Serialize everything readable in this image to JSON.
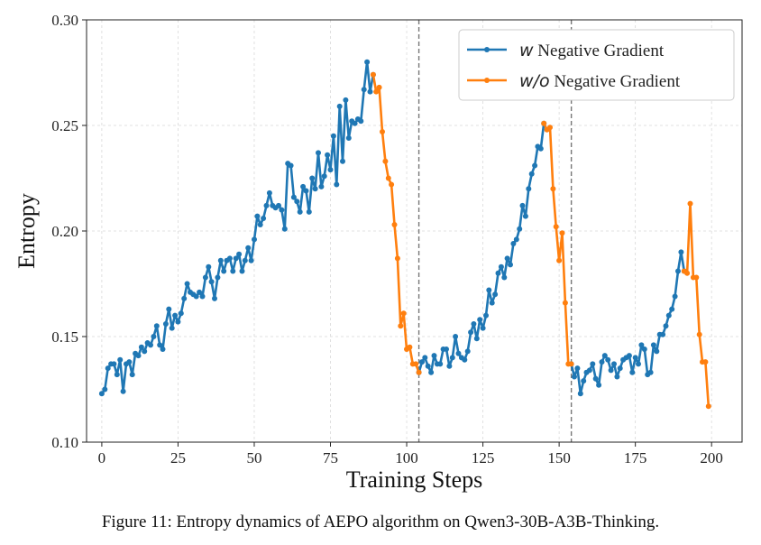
{
  "chart_data": {
    "type": "line",
    "xlabel": "Training Steps",
    "ylabel": "Entropy",
    "xlim": [
      -5,
      210
    ],
    "ylim": [
      0.1,
      0.3
    ],
    "xticks": [
      0,
      25,
      50,
      75,
      100,
      125,
      150,
      175,
      200
    ],
    "xtick_labels": [
      "0",
      "25",
      "50",
      "75",
      "100",
      "125",
      "150",
      "175",
      "200"
    ],
    "yticks": [
      0.1,
      0.15,
      0.2,
      0.25,
      0.3
    ],
    "ytick_labels": [
      "0.10",
      "0.15",
      "0.20",
      "0.25",
      "0.30"
    ],
    "grid": true,
    "legend_position": "top-right",
    "vlines": [
      104,
      154
    ],
    "series": [
      {
        "name_italic": "w",
        "name_rest": " Negative Gradient",
        "color": "#1f77b4",
        "segments": [
          [
            [
              0,
              0.123
            ],
            [
              1,
              0.125
            ],
            [
              2,
              0.135
            ],
            [
              3,
              0.137
            ],
            [
              4,
              0.137
            ],
            [
              5,
              0.132
            ],
            [
              6,
              0.139
            ],
            [
              7,
              0.124
            ],
            [
              8,
              0.137
            ],
            [
              9,
              0.138
            ],
            [
              10,
              0.132
            ],
            [
              11,
              0.142
            ],
            [
              12,
              0.141
            ],
            [
              13,
              0.145
            ],
            [
              14,
              0.143
            ],
            [
              15,
              0.147
            ],
            [
              16,
              0.146
            ],
            [
              17,
              0.15
            ],
            [
              18,
              0.155
            ],
            [
              19,
              0.146
            ],
            [
              20,
              0.144
            ],
            [
              21,
              0.156
            ],
            [
              22,
              0.163
            ],
            [
              23,
              0.154
            ],
            [
              24,
              0.16
            ],
            [
              25,
              0.157
            ],
            [
              26,
              0.161
            ],
            [
              27,
              0.168
            ],
            [
              28,
              0.175
            ],
            [
              29,
              0.171
            ],
            [
              30,
              0.17
            ],
            [
              31,
              0.169
            ],
            [
              32,
              0.171
            ],
            [
              33,
              0.169
            ],
            [
              34,
              0.178
            ],
            [
              35,
              0.183
            ],
            [
              36,
              0.176
            ],
            [
              37,
              0.168
            ],
            [
              38,
              0.178
            ],
            [
              39,
              0.186
            ],
            [
              40,
              0.181
            ],
            [
              41,
              0.186
            ],
            [
              42,
              0.187
            ],
            [
              43,
              0.181
            ],
            [
              44,
              0.187
            ],
            [
              45,
              0.189
            ],
            [
              46,
              0.181
            ],
            [
              47,
              0.186
            ],
            [
              48,
              0.192
            ],
            [
              49,
              0.186
            ],
            [
              50,
              0.196
            ],
            [
              51,
              0.207
            ],
            [
              52,
              0.203
            ],
            [
              53,
              0.206
            ],
            [
              54,
              0.212
            ],
            [
              55,
              0.218
            ],
            [
              56,
              0.212
            ],
            [
              57,
              0.211
            ],
            [
              58,
              0.212
            ],
            [
              59,
              0.21
            ],
            [
              60,
              0.201
            ],
            [
              61,
              0.232
            ],
            [
              62,
              0.231
            ],
            [
              63,
              0.216
            ],
            [
              64,
              0.214
            ],
            [
              65,
              0.209
            ],
            [
              66,
              0.221
            ],
            [
              67,
              0.219
            ],
            [
              68,
              0.209
            ],
            [
              69,
              0.225
            ],
            [
              70,
              0.22
            ],
            [
              71,
              0.237
            ],
            [
              72,
              0.221
            ],
            [
              73,
              0.226
            ],
            [
              74,
              0.236
            ],
            [
              75,
              0.229
            ],
            [
              76,
              0.245
            ],
            [
              77,
              0.222
            ],
            [
              78,
              0.259
            ],
            [
              79,
              0.233
            ],
            [
              80,
              0.262
            ],
            [
              81,
              0.244
            ],
            [
              82,
              0.252
            ],
            [
              83,
              0.251
            ],
            [
              84,
              0.253
            ],
            [
              85,
              0.252
            ],
            [
              86,
              0.267
            ],
            [
              87,
              0.28
            ],
            [
              88,
              0.266
            ],
            [
              89,
              0.274
            ]
          ],
          [
            [
              104,
              0.133
            ],
            [
              105,
              0.138
            ],
            [
              106,
              0.14
            ],
            [
              107,
              0.136
            ],
            [
              108,
              0.133
            ],
            [
              109,
              0.141
            ],
            [
              110,
              0.137
            ],
            [
              111,
              0.137
            ],
            [
              112,
              0.144
            ],
            [
              113,
              0.144
            ],
            [
              114,
              0.136
            ],
            [
              115,
              0.14
            ],
            [
              116,
              0.15
            ],
            [
              117,
              0.142
            ],
            [
              118,
              0.14
            ],
            [
              119,
              0.139
            ],
            [
              120,
              0.143
            ],
            [
              121,
              0.152
            ],
            [
              122,
              0.156
            ],
            [
              123,
              0.149
            ],
            [
              124,
              0.158
            ],
            [
              125,
              0.154
            ],
            [
              126,
              0.16
            ],
            [
              127,
              0.172
            ],
            [
              128,
              0.166
            ],
            [
              129,
              0.17
            ],
            [
              130,
              0.18
            ],
            [
              131,
              0.183
            ],
            [
              132,
              0.178
            ],
            [
              133,
              0.187
            ],
            [
              134,
              0.184
            ],
            [
              135,
              0.194
            ],
            [
              136,
              0.196
            ],
            [
              137,
              0.201
            ],
            [
              138,
              0.212
            ],
            [
              139,
              0.207
            ],
            [
              140,
              0.22
            ],
            [
              141,
              0.227
            ],
            [
              142,
              0.231
            ],
            [
              143,
              0.24
            ],
            [
              144,
              0.239
            ],
            [
              145,
              0.251
            ]
          ],
          [
            [
              154,
              0.137
            ],
            [
              155,
              0.131
            ],
            [
              156,
              0.135
            ],
            [
              157,
              0.123
            ],
            [
              158,
              0.129
            ],
            [
              159,
              0.133
            ],
            [
              160,
              0.134
            ],
            [
              161,
              0.137
            ],
            [
              162,
              0.13
            ],
            [
              163,
              0.127
            ],
            [
              164,
              0.138
            ],
            [
              165,
              0.141
            ],
            [
              166,
              0.139
            ],
            [
              167,
              0.134
            ],
            [
              168,
              0.137
            ],
            [
              169,
              0.131
            ],
            [
              170,
              0.135
            ],
            [
              171,
              0.139
            ],
            [
              172,
              0.14
            ],
            [
              173,
              0.141
            ],
            [
              174,
              0.133
            ],
            [
              175,
              0.14
            ],
            [
              176,
              0.137
            ],
            [
              177,
              0.146
            ],
            [
              178,
              0.144
            ],
            [
              179,
              0.132
            ],
            [
              180,
              0.133
            ],
            [
              181,
              0.146
            ],
            [
              182,
              0.143
            ],
            [
              183,
              0.151
            ],
            [
              184,
              0.151
            ],
            [
              185,
              0.155
            ],
            [
              186,
              0.16
            ],
            [
              187,
              0.163
            ],
            [
              188,
              0.169
            ],
            [
              189,
              0.181
            ],
            [
              190,
              0.19
            ],
            [
              191,
              0.181
            ]
          ]
        ]
      },
      {
        "name_italic": "w/o",
        "name_rest": " Negative Gradient",
        "color": "#ff7f0e",
        "segments": [
          [
            [
              89,
              0.274
            ],
            [
              90,
              0.266
            ],
            [
              91,
              0.268
            ],
            [
              92,
              0.247
            ],
            [
              93,
              0.233
            ],
            [
              94,
              0.225
            ],
            [
              95,
              0.222
            ],
            [
              96,
              0.203
            ],
            [
              97,
              0.187
            ],
            [
              98,
              0.155
            ],
            [
              99,
              0.161
            ],
            [
              100,
              0.144
            ],
            [
              101,
              0.145
            ],
            [
              102,
              0.137
            ],
            [
              103,
              0.137
            ],
            [
              104,
              0.133
            ]
          ],
          [
            [
              145,
              0.251
            ],
            [
              146,
              0.248
            ],
            [
              147,
              0.249
            ],
            [
              148,
              0.22
            ],
            [
              149,
              0.202
            ],
            [
              150,
              0.186
            ],
            [
              151,
              0.199
            ],
            [
              152,
              0.166
            ],
            [
              153,
              0.137
            ],
            [
              154,
              0.137
            ]
          ],
          [
            [
              191,
              0.181
            ],
            [
              192,
              0.18
            ],
            [
              193,
              0.213
            ],
            [
              194,
              0.178
            ],
            [
              195,
              0.178
            ],
            [
              196,
              0.151
            ],
            [
              197,
              0.138
            ],
            [
              198,
              0.138
            ],
            [
              199,
              0.117
            ]
          ]
        ]
      }
    ]
  },
  "caption": "Figure 11: Entropy dynamics of AEPO algorithm on Qwen3-30B-A3B-Thinking."
}
